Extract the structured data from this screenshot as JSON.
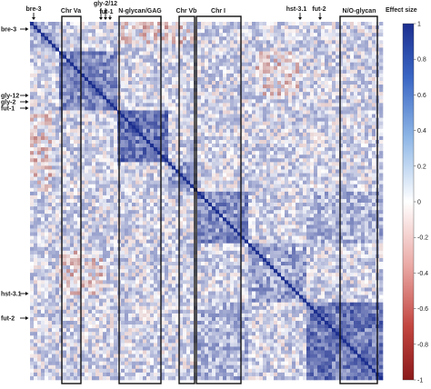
{
  "chart_data": {
    "type": "heatmap",
    "description_values": {
      "colorscale_min": -1,
      "colorscale_max": 1,
      "colors": {
        "negative": "#8b1a1a",
        "zero": "#ffffff",
        "positive": "#1c2f8f",
        "box_stroke": "#111111"
      }
    },
    "legend": {
      "title": "Effect size",
      "ticks": [
        "1",
        "0.8",
        "0.6",
        "0.4",
        "0.2",
        "0",
        "-0.2",
        "-0.4",
        "-0.6",
        "-0.8",
        "-1"
      ],
      "position": "right"
    },
    "cluster_boxes": [
      {
        "label": "Chr Va"
      },
      {
        "label": "N-glycan/GAG"
      },
      {
        "label": "Chr Vb"
      },
      {
        "label": "Chr I"
      },
      {
        "label": "N/O-glycan"
      }
    ],
    "top_gene_labels": [
      {
        "label": "bre-3"
      },
      {
        "label": "gly-2/12"
      },
      {
        "label": "fut-1"
      },
      {
        "label": "hst-3.1"
      },
      {
        "label": "fut-2"
      }
    ],
    "left_gene_labels": [
      {
        "label": "bre-3"
      },
      {
        "label": "gly-12"
      },
      {
        "label": "gly-2"
      },
      {
        "label": "fut-1"
      },
      {
        "label": "hst-3.1"
      },
      {
        "label": "fut-2"
      }
    ]
  }
}
